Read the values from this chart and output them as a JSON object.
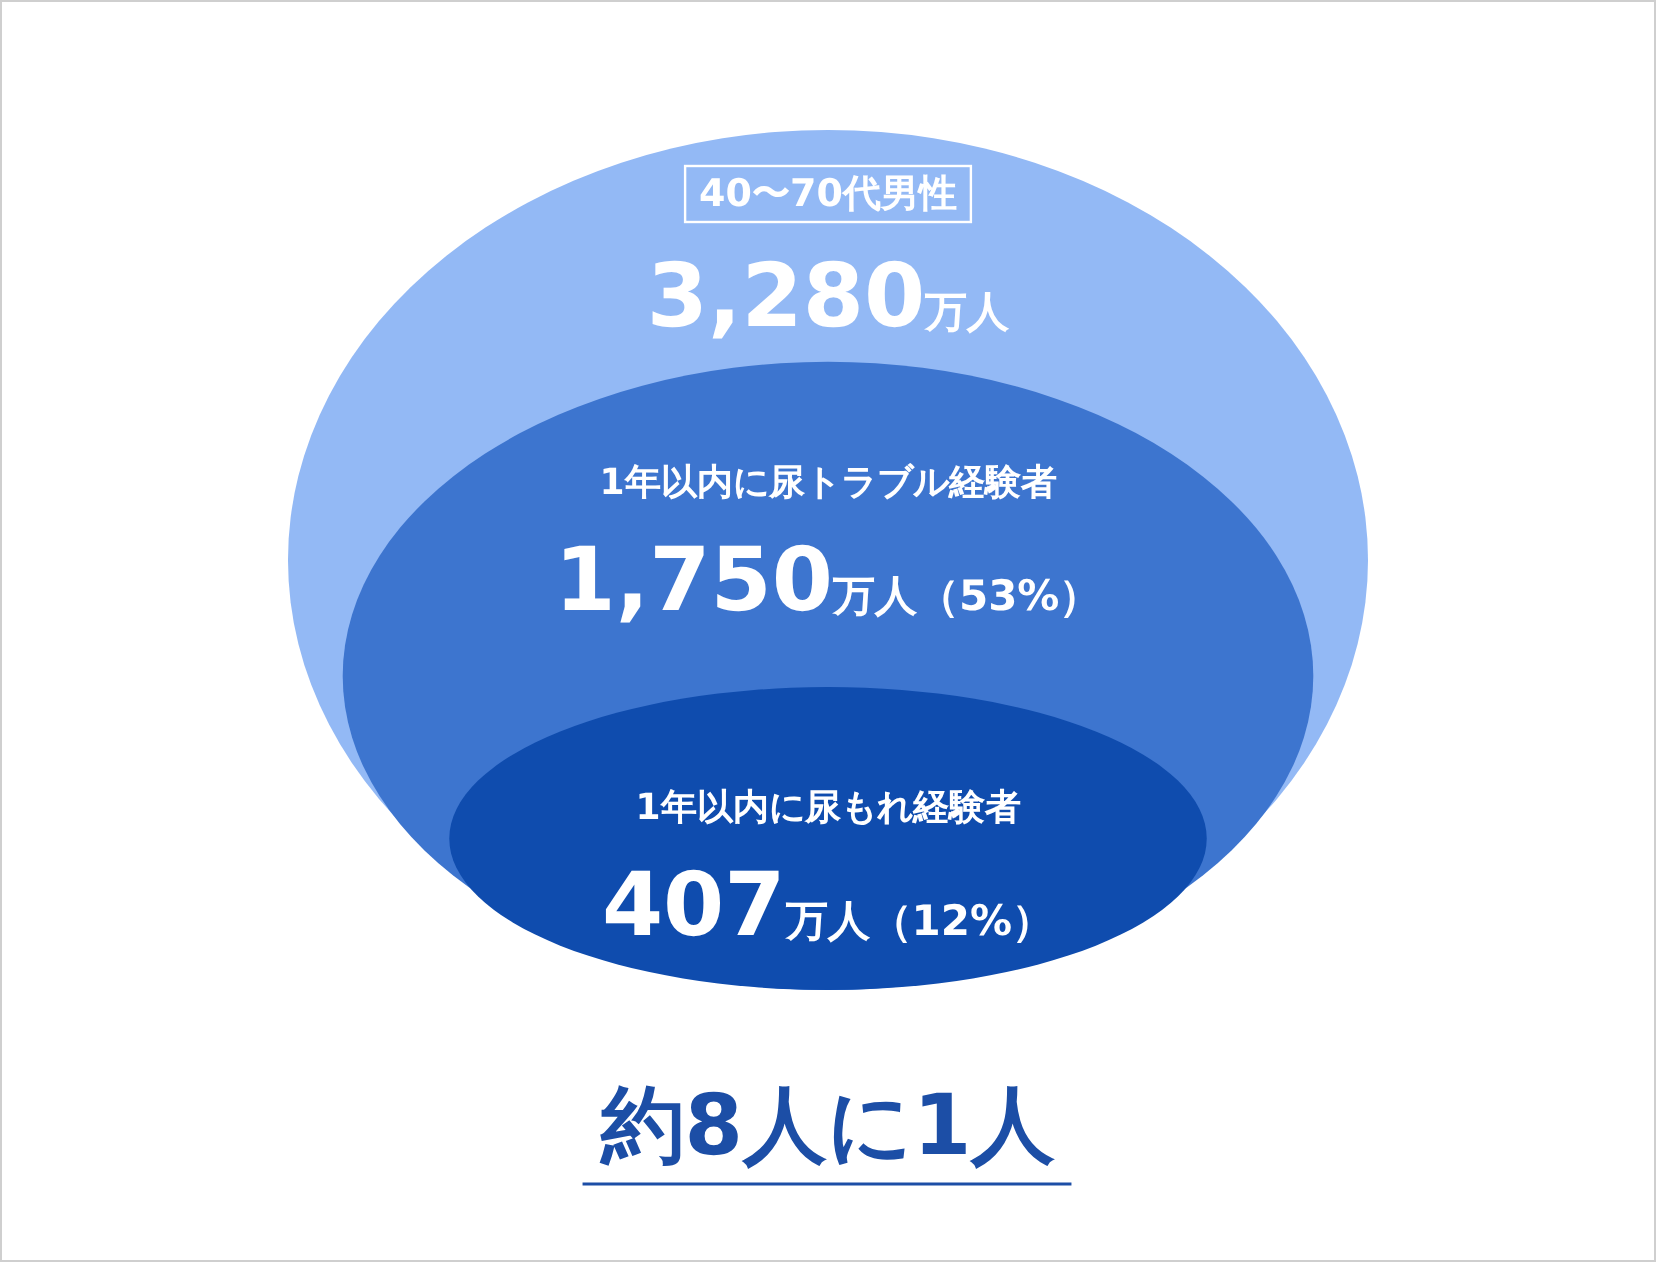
{
  "chart_data": {
    "type": "other",
    "categories": [
      "40〜70代男性",
      "1年以内に尿トラブル経験者",
      "1年以内に尿もれ経験者"
    ],
    "values": [
      3280,
      1750,
      407
    ],
    "value_labels": [
      "3,280万人",
      "1,750万人（53%）",
      "407万人（12%）"
    ],
    "colors": [
      "#93b9f5",
      "#3d75cf",
      "#0f4cae"
    ],
    "annotations": [
      "約8人に1人"
    ]
  }
}
